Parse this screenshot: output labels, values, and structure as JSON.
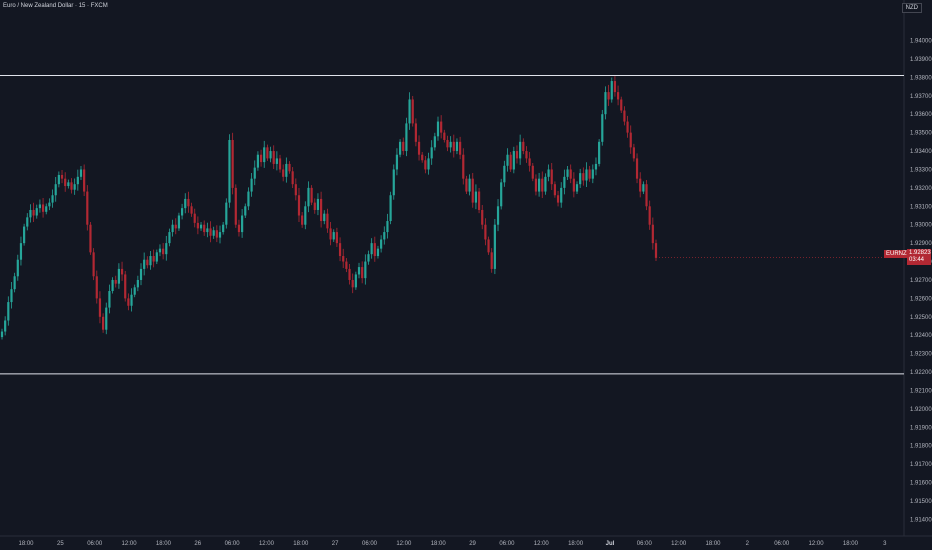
{
  "header": {
    "title": "Euro / New Zealand Dollar · 15 · FXCM",
    "currency": "NZD"
  },
  "last_price": {
    "symbol": "EURNZD",
    "price": "1.92823",
    "countdown": "03:44",
    "color": "#b22833"
  },
  "colors": {
    "background": "#131722",
    "up": "#26a69a",
    "down": "#b22833",
    "level_line": "#e0e3eb",
    "axis_text": "#b2b5be"
  },
  "chart_data": {
    "type": "candlestick",
    "title": "",
    "xlabel": "",
    "ylabel": "",
    "ylim": [
      1.9131,
      1.9422
    ],
    "y_ticks": [
      "1.94000",
      "1.93900",
      "1.93800",
      "1.93700",
      "1.93600",
      "1.93500",
      "1.93400",
      "1.93300",
      "1.93200",
      "1.93100",
      "1.93000",
      "1.92900",
      "1.92800",
      "1.92700",
      "1.92600",
      "1.92500",
      "1.92400",
      "1.92300",
      "1.92200",
      "1.92100",
      "1.92000",
      "1.91900",
      "1.91800",
      "1.91700",
      "1.91600",
      "1.91500",
      "1.91400"
    ],
    "x_ticks": [
      "18:00",
      "25",
      "06:00",
      "12:00",
      "18:00",
      "26",
      "06:00",
      "12:00",
      "18:00",
      "27",
      "06:00",
      "12:00",
      "18:00",
      "29",
      "06:00",
      "12:00",
      "18:00",
      "Jul",
      "06:00",
      "12:00",
      "18:00",
      "2",
      "06:00",
      "12:00",
      "18:00",
      "3"
    ],
    "x_tick_bold": [
      "Jul"
    ],
    "horizontal_levels": [
      1.9381,
      1.9219
    ],
    "close_series": [
      1.9242,
      1.9248,
      1.9258,
      1.9265,
      1.9272,
      1.9281,
      1.929,
      1.9299,
      1.9304,
      1.9308,
      1.9305,
      1.9309,
      1.9311,
      1.9307,
      1.931,
      1.9312,
      1.9316,
      1.9322,
      1.9327,
      1.9325,
      1.9321,
      1.9323,
      1.9319,
      1.9322,
      1.9326,
      1.933,
      1.9318,
      1.93,
      1.9285,
      1.9272,
      1.926,
      1.925,
      1.9243,
      1.9255,
      1.9264,
      1.927,
      1.9268,
      1.9276,
      1.9273,
      1.926,
      1.9256,
      1.9262,
      1.9266,
      1.927,
      1.9276,
      1.9281,
      1.9278,
      1.9283,
      1.928,
      1.9285,
      1.9287,
      1.9284,
      1.929,
      1.9296,
      1.93,
      1.9298,
      1.9305,
      1.9309,
      1.9314,
      1.931,
      1.9306,
      1.9301,
      1.9298,
      1.93,
      1.9296,
      1.9298,
      1.9294,
      1.9297,
      1.9293,
      1.9296,
      1.93,
      1.9312,
      1.9346,
      1.932,
      1.93,
      1.9296,
      1.9305,
      1.931,
      1.9318,
      1.9325,
      1.9331,
      1.9338,
      1.9334,
      1.9342,
      1.9336,
      1.934,
      1.9333,
      1.9336,
      1.933,
      1.9326,
      1.9333,
      1.9329,
      1.9322,
      1.9316,
      1.9305,
      1.93,
      1.931,
      1.932,
      1.9312,
      1.9308,
      1.9314,
      1.9302,
      1.9306,
      1.9298,
      1.9292,
      1.9296,
      1.929,
      1.9283,
      1.928,
      1.9276,
      1.927,
      1.9266,
      1.9273,
      1.9277,
      1.9271,
      1.928,
      1.9284,
      1.929,
      1.9283,
      1.9287,
      1.9292,
      1.9296,
      1.9302,
      1.9316,
      1.933,
      1.9338,
      1.9345,
      1.934,
      1.9355,
      1.9368,
      1.9355,
      1.9345,
      1.9338,
      1.9335,
      1.933,
      1.9336,
      1.9342,
      1.9348,
      1.9356,
      1.935,
      1.9346,
      1.9342,
      1.9345,
      1.934,
      1.9345,
      1.9338,
      1.9325,
      1.9318,
      1.9325,
      1.9312,
      1.9318,
      1.9308,
      1.93,
      1.9292,
      1.9285,
      1.9276,
      1.93,
      1.931,
      1.9323,
      1.9332,
      1.9338,
      1.933,
      1.934,
      1.9336,
      1.9345,
      1.934,
      1.9336,
      1.9332,
      1.9325,
      1.9318,
      1.9325,
      1.9318,
      1.9326,
      1.933,
      1.9322,
      1.9316,
      1.9312,
      1.932,
      1.9326,
      1.933,
      1.9325,
      1.9318,
      1.9322,
      1.9328,
      1.9324,
      1.933,
      1.9325,
      1.933,
      1.9333,
      1.9345,
      1.936,
      1.9372,
      1.9368,
      1.9378,
      1.9372,
      1.9368,
      1.9362,
      1.9356,
      1.935,
      1.9342,
      1.9336,
      1.9325,
      1.9318,
      1.9322,
      1.931,
      1.93,
      1.929,
      1.9282
    ]
  }
}
